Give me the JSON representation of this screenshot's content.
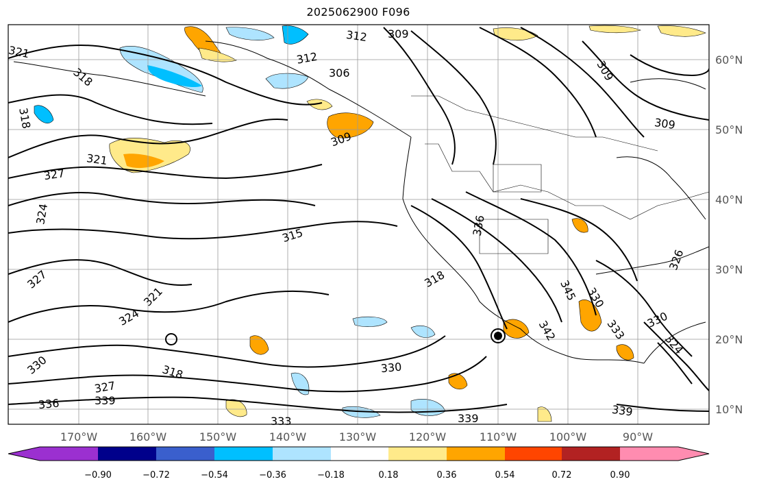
{
  "title": "2025062900 F096",
  "map": {
    "lon_labels": [
      "170°W",
      "160°W",
      "150°W",
      "140°W",
      "130°W",
      "120°W",
      "110°W",
      "100°W",
      "90°W"
    ],
    "lat_labels": [
      "60°N",
      "50°N",
      "40°N",
      "30°N",
      "20°N",
      "10°N"
    ],
    "contour_labels": [
      "321",
      "318",
      "312",
      "309",
      "312",
      "306",
      "309",
      "309",
      "309",
      "318",
      "321",
      "327",
      "324",
      "315",
      "336",
      "318",
      "327",
      "321",
      "324",
      "318",
      "330",
      "327",
      "336",
      "339",
      "333",
      "330",
      "339",
      "345",
      "342",
      "330",
      "333",
      "330",
      "324",
      "326",
      "339"
    ]
  },
  "colorbar": {
    "ticks": [
      "−0.90",
      "−0.72",
      "−0.54",
      "−0.36",
      "−0.18",
      "0.18",
      "0.36",
      "0.54",
      "0.72",
      "0.90"
    ],
    "colors": [
      "#9b30d0",
      "#00008b",
      "#3a5fcd",
      "#00bfff",
      "#aee4ff",
      "#ffffff",
      "#ffea8a",
      "#ffa500",
      "#ff4500",
      "#b22222",
      "#ff8cb0"
    ]
  }
}
